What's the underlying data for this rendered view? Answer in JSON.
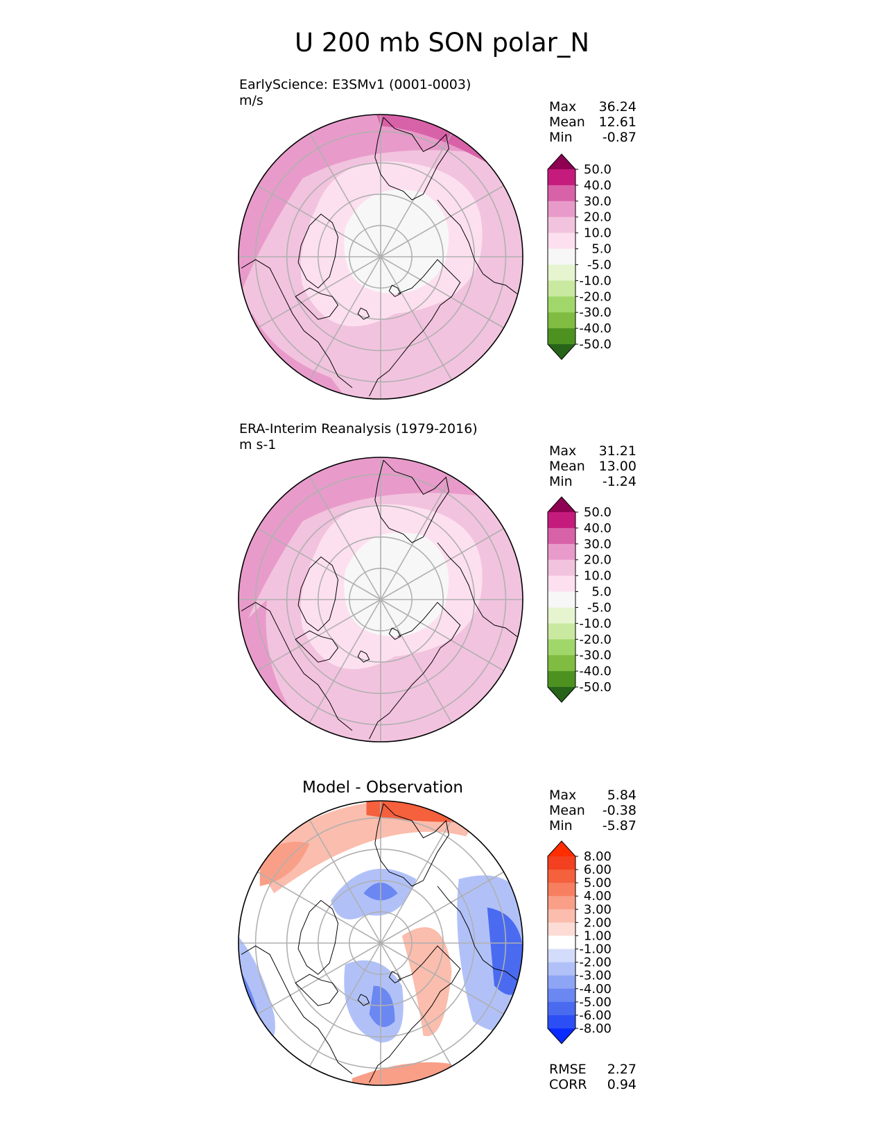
{
  "title": "U 200 mb SON polar_N",
  "chart_data": [
    {
      "type": "heatmap",
      "projection": "north polar stereographic",
      "title": "EarlyScience: E3SMv1 (0001-0003)",
      "units": "m/s",
      "stats": {
        "max": "36.24",
        "mean": "12.61",
        "min": "-0.87"
      },
      "stat_labels": {
        "max": "Max",
        "mean": "Mean",
        "min": "Min"
      },
      "colorbar_levels": [
        "-50.0",
        "-40.0",
        "-30.0",
        "-20.0",
        "-10.0",
        "-5.0",
        "5.0",
        "10.0",
        "20.0",
        "30.0",
        "40.0",
        "50.0"
      ],
      "colorbar_colors": [
        "#276419",
        "#4d9221",
        "#7fbc41",
        "#a1d76a",
        "#c9e8a0",
        "#e6f5d0",
        "#f7f7f7",
        "#fde0ef",
        "#f2c3de",
        "#e89bca",
        "#d862a8",
        "#c51b7d",
        "#8e0152"
      ]
    },
    {
      "type": "heatmap",
      "projection": "north polar stereographic",
      "title": "ERA-Interim Reanalysis (1979-2016)",
      "units": "m s-1",
      "stats": {
        "max": "31.21",
        "mean": "13.00",
        "min": "-1.24"
      },
      "stat_labels": {
        "max": "Max",
        "mean": "Mean",
        "min": "Min"
      },
      "colorbar_levels": [
        "-50.0",
        "-40.0",
        "-30.0",
        "-20.0",
        "-10.0",
        "-5.0",
        "5.0",
        "10.0",
        "20.0",
        "30.0",
        "40.0",
        "50.0"
      ],
      "colorbar_colors": [
        "#276419",
        "#4d9221",
        "#7fbc41",
        "#a1d76a",
        "#c9e8a0",
        "#e6f5d0",
        "#f7f7f7",
        "#fde0ef",
        "#f2c3de",
        "#e89bca",
        "#d862a8",
        "#c51b7d",
        "#8e0152"
      ]
    },
    {
      "type": "heatmap",
      "projection": "north polar stereographic",
      "title": "Model - Observation",
      "stats": {
        "max": "5.84",
        "mean": "-0.38",
        "min": "-5.87"
      },
      "stat_labels": {
        "max": "Max",
        "mean": "Mean",
        "min": "Min"
      },
      "colorbar_levels": [
        "-8.00",
        "-6.00",
        "-5.00",
        "-4.00",
        "-3.00",
        "-2.00",
        "-1.00",
        "1.00",
        "2.00",
        "3.00",
        "4.00",
        "5.00",
        "6.00",
        "8.00"
      ],
      "colorbar_colors": [
        "#0a2bff",
        "#2c4ff5",
        "#4a6bf0",
        "#6b87f2",
        "#8ea4f5",
        "#b1c1f8",
        "#d4dcfb",
        "#ffffff",
        "#fcdcd5",
        "#fbbdad",
        "#f99f87",
        "#f77f60",
        "#f5603d",
        "#f24020",
        "#ff2d00"
      ],
      "metrics": {
        "rmse_label": "RMSE",
        "rmse": "2.27",
        "corr_label": "CORR",
        "corr": "0.94"
      }
    }
  ]
}
